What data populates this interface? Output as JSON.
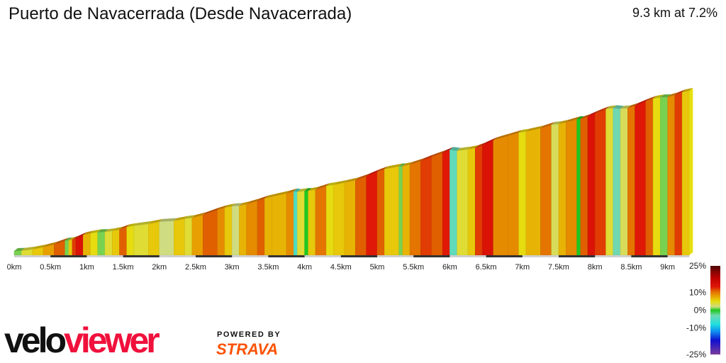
{
  "header": {
    "title": "Puerto de Navacerrada (Desde Navacerrada)",
    "summary": "9.3 km at 7.2%"
  },
  "chart_data": {
    "type": "area",
    "title": "Puerto de Navacerrada (Desde Navacerrada)",
    "xlabel": "",
    "ylabel": "",
    "xlim": [
      0,
      9.3
    ],
    "x_tick_labels": [
      "0km",
      "0.5km",
      "1km",
      "1.5km",
      "2km",
      "2.5km",
      "3km",
      "3.5km",
      "4km",
      "4.5km",
      "5km",
      "5.5km",
      "6km",
      "6.5km",
      "7km",
      "7.5km",
      "8km",
      "8.5km",
      "9km"
    ],
    "x_ticks_km": [
      0,
      0.5,
      1,
      1.5,
      2,
      2.5,
      3,
      3.5,
      4,
      4.5,
      5,
      5.5,
      6,
      6.5,
      7,
      7.5,
      8,
      8.5,
      9
    ],
    "segment_bounds_km": [
      0,
      0.1,
      0.25,
      0.4,
      0.55,
      0.7,
      0.75,
      0.8,
      0.85,
      0.95,
      1.05,
      1.15,
      1.25,
      1.35,
      1.45,
      1.55,
      1.65,
      1.85,
      2.0,
      2.2,
      2.35,
      2.45,
      2.6,
      2.8,
      2.9,
      3.0,
      3.1,
      3.2,
      3.35,
      3.45,
      3.55,
      3.75,
      3.85,
      3.9,
      4.0,
      4.05,
      4.15,
      4.3,
      4.4,
      4.55,
      4.7,
      4.85,
      5.0,
      5.1,
      5.3,
      5.35,
      5.45,
      5.6,
      5.75,
      5.9,
      6.0,
      6.1,
      6.25,
      6.35,
      6.45,
      6.6,
      6.8,
      6.95,
      7.05,
      7.25,
      7.4,
      7.5,
      7.6,
      7.75,
      7.8,
      7.9,
      8.0,
      8.15,
      8.25,
      8.35,
      8.45,
      8.55,
      8.7,
      8.8,
      8.9,
      9.0,
      9.1,
      9.2,
      9.3
    ],
    "grade_pct": [
      1,
      4,
      6,
      8,
      11,
      1,
      6,
      12,
      14,
      7,
      5,
      1,
      4,
      6,
      11,
      5,
      4,
      6,
      2,
      6,
      4,
      8,
      11,
      9,
      6,
      2,
      7,
      9,
      11,
      7,
      7,
      9,
      -5,
      4,
      0,
      6,
      10,
      5,
      6,
      7,
      11,
      13,
      11,
      6,
      1,
      7,
      10,
      12,
      11,
      13,
      -4,
      4,
      6,
      12,
      14,
      9,
      9,
      5,
      7,
      10,
      3,
      7,
      9,
      0,
      11,
      14,
      12,
      4,
      -3,
      3,
      10,
      13,
      11,
      5,
      1,
      9,
      12,
      6
    ],
    "legend": {
      "labels": [
        "25%",
        "10%",
        "0%",
        "-10%",
        "-25%"
      ],
      "values": [
        25,
        10,
        0,
        -10,
        -25
      ],
      "color_stops": [
        {
          "grade": -25,
          "color": "#7a3c9a"
        },
        {
          "grade": -17,
          "color": "#1010d0"
        },
        {
          "grade": -12,
          "color": "#1090f0"
        },
        {
          "grade": -8,
          "color": "#20e0e0"
        },
        {
          "grade": -3,
          "color": "#70d8b0"
        },
        {
          "grade": 0,
          "color": "#20c820"
        },
        {
          "grade": 2,
          "color": "#d0dc80"
        },
        {
          "grade": 5,
          "color": "#e6dc10"
        },
        {
          "grade": 8,
          "color": "#e8a000"
        },
        {
          "grade": 11,
          "color": "#e06000"
        },
        {
          "grade": 13,
          "color": "#e01808"
        },
        {
          "grade": 18,
          "color": "#c00000"
        },
        {
          "grade": 25,
          "color": "#500808"
        }
      ]
    }
  },
  "branding": {
    "logo_part1": "velo",
    "logo_part2": "viewer",
    "powered_by": "POWERED BY",
    "strava": "STRAVA"
  }
}
